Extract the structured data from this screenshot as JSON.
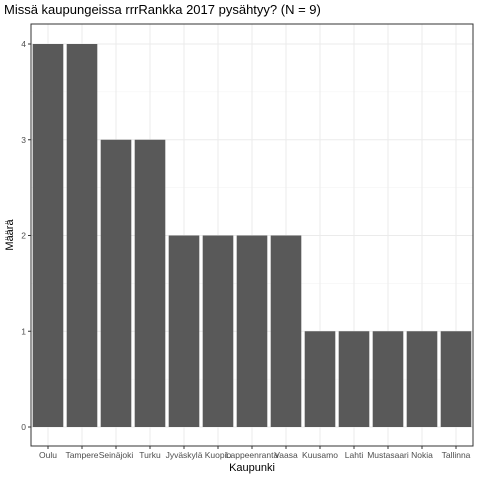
{
  "chart_data": {
    "type": "bar",
    "title": "Missä kaupungeissa rrrRankka 2017 pysähtyy? (N = 9)",
    "xlabel": "Kaupunki",
    "ylabel": "Määrä",
    "categories": [
      "Oulu",
      "Tampere",
      "Seinäjoki",
      "Turku",
      "Jyväskylä",
      "Kuopio",
      "Lappeenranta",
      "Vaasa",
      "Kuusamo",
      "Lahti",
      "Mustasaari",
      "Nokia",
      "Tallinna"
    ],
    "values": [
      4,
      4,
      3,
      3,
      2,
      2,
      2,
      2,
      1,
      1,
      1,
      1,
      1
    ],
    "ylim": [
      0,
      4.2
    ],
    "yticks": [
      0,
      1,
      2,
      3,
      4
    ],
    "grid": true,
    "legend": "none",
    "colors": {
      "bar": "#595959",
      "grid": "#ebebeb",
      "panel_border": "#333333",
      "background": "#ffffff"
    }
  }
}
